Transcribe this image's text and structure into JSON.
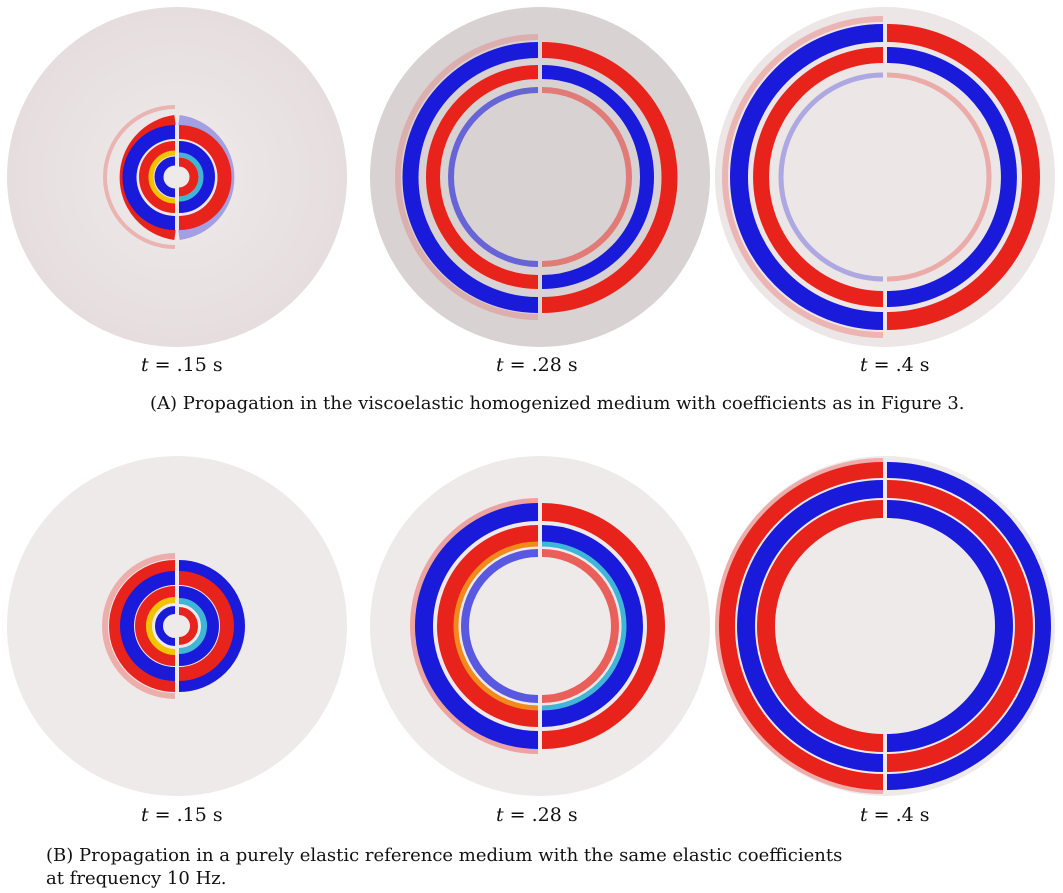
{
  "panels": [
    {
      "id": "A",
      "caption_tag": "(A)",
      "caption_text": "Propagation in the viscoelastic homogenized medium with coefficients as in Figure 3.",
      "frames": [
        {
          "t_label": "t = .15 s",
          "t_var": "t",
          "t_rest": " = .15 s"
        },
        {
          "t_label": "t = .28 s",
          "t_var": "t",
          "t_rest": " = .28 s"
        },
        {
          "t_label": "t = .4 s",
          "t_var": "t",
          "t_rest": " = .4 s"
        }
      ]
    },
    {
      "id": "B",
      "caption_tag": "(B)",
      "caption_text": "Propagation in a purely elastic reference medium with the same elastic coefficients",
      "caption_text2": "at frequency 10 Hz.",
      "frames": [
        {
          "t_label": "t = .15 s",
          "t_var": "t",
          "t_rest": " = .15 s"
        },
        {
          "t_label": "t = .28 s",
          "t_var": "t",
          "t_rest": " = .28 s"
        },
        {
          "t_label": "t = .4 s",
          "t_var": "t",
          "t_rest": " = .4 s"
        }
      ]
    }
  ],
  "colors": {
    "positive": "#e8231c",
    "negative": "#1a1adb",
    "peak": "#f2c400",
    "background_disc": "#ece6e6"
  }
}
